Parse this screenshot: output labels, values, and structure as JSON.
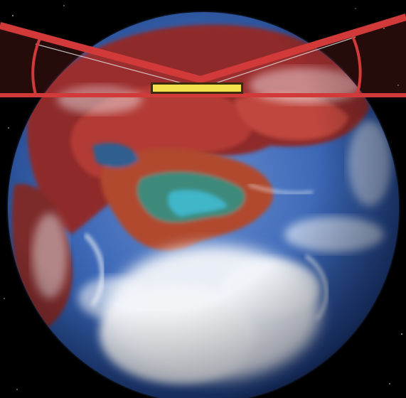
{
  "colors": {
    "space": "#000000",
    "hud_red": "#d23a3a",
    "hud_red_dark": "#b02828",
    "progress_fill": "#f2e14c",
    "progress_border": "#3a2c0c",
    "ocean": "#2d6fc4",
    "land_red": "#8e2b2b",
    "cloud": "#f3f5f9"
  },
  "icons": {
    "planet": "globe-icon"
  },
  "hud": {
    "progress_fraction": 1.0
  }
}
